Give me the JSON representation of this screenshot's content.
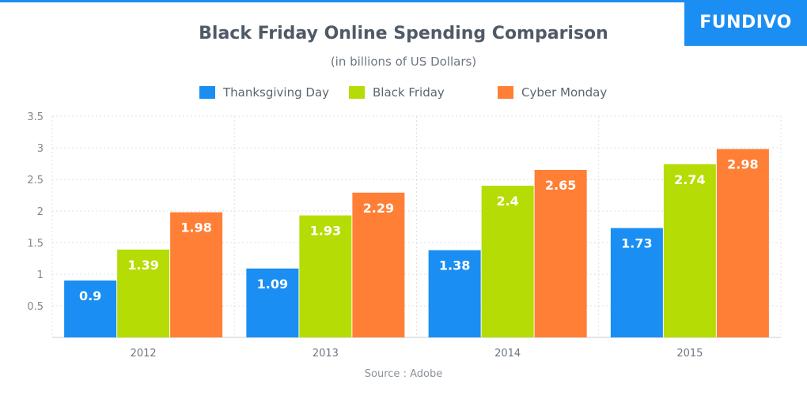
{
  "brand": {
    "name": "FUNDIVO",
    "color": "#1a8ef2"
  },
  "chart_data": {
    "type": "bar",
    "title": "Black Friday Online Spending Comparison",
    "subtitle": "(in billions of US Dollars)",
    "categories": [
      "2012",
      "2013",
      "2014",
      "2015"
    ],
    "series": [
      {
        "name": "Thanksgiving Day",
        "color": "#1a8ef2",
        "values": [
          0.9,
          1.09,
          1.38,
          1.73
        ],
        "labels": [
          "0.9",
          "1.09",
          "1.38",
          "1.73"
        ]
      },
      {
        "name": "Black Friday",
        "color": "#b5dc04",
        "values": [
          1.39,
          1.93,
          2.4,
          2.74
        ],
        "labels": [
          "1.39",
          "1.93",
          "2.4",
          "2.74"
        ]
      },
      {
        "name": "Cyber Monday",
        "color": "#ff7f36",
        "values": [
          1.98,
          2.29,
          2.65,
          2.98
        ],
        "labels": [
          "1.98",
          "2.29",
          "2.65",
          "2.98"
        ]
      }
    ],
    "y_ticks": [
      "0.5",
      "1",
      "1.5",
      "2",
      "2.5",
      "3",
      "3.5"
    ],
    "ylim": [
      0,
      3.5
    ],
    "grid": true,
    "legend_position": "top-center",
    "source": "Source : Adobe"
  }
}
